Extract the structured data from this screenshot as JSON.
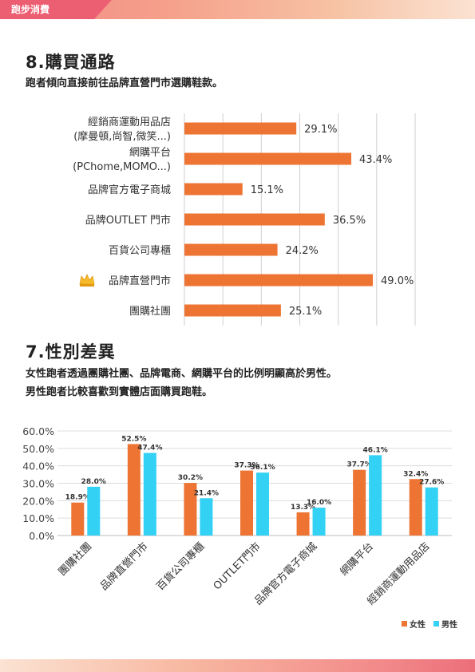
{
  "header": {
    "tag": "跑步消費"
  },
  "section8": {
    "title": "8.購買通路",
    "subtitle": "跑者傾向直接前往品牌直營門市選購鞋款。"
  },
  "section7": {
    "title": "7.性別差異",
    "subtitle_lines": [
      "女性跑者透過團購社團、品牌電商、網購平台的比例明顯高於男性。",
      "男性跑者比較喜歡到實體店面購買跑鞋。"
    ]
  },
  "colors": {
    "orange": "#ed7433",
    "blue": "#33d1f4",
    "grid": "#cfcfcf"
  },
  "chart_data": [
    {
      "type": "bar",
      "orientation": "horizontal",
      "categories": [
        [
          "經銷商運動用品店",
          "(摩曼頓,尚智,微笑...)"
        ],
        [
          "網購平台",
          "(PChome,MOMO...)"
        ],
        [
          "品牌官方電子商城"
        ],
        [
          "品牌OUTLET 門市"
        ],
        [
          "百貨公司專櫃"
        ],
        [
          "品牌直營門市"
        ],
        [
          "團購社團"
        ]
      ],
      "values": [
        29.1,
        43.4,
        15.1,
        36.5,
        24.2,
        49.0,
        25.1
      ],
      "value_labels": [
        "29.1%",
        "43.4%",
        "15.1%",
        "36.5%",
        "24.2%",
        "49.0%",
        "25.1%"
      ],
      "highlight_index": 5,
      "highlight_icon": "crown-icon",
      "xlim": [
        0,
        60
      ],
      "grid": true
    },
    {
      "type": "bar",
      "categories": [
        "團購社團",
        "品牌直營門市",
        "百貨公司專櫃",
        "OUTLET門市",
        "品牌官方電子商城",
        "網購平台",
        "經銷商運動用品店"
      ],
      "series": [
        {
          "name": "女性",
          "values": [
            18.9,
            52.5,
            30.2,
            37.3,
            13.3,
            37.7,
            32.4
          ],
          "labels": [
            "18.9%",
            "52.5%",
            "30.2%",
            "37.3%",
            "13.3%",
            "37.7%",
            "32.4%"
          ]
        },
        {
          "name": "男性",
          "values": [
            28.0,
            47.4,
            21.4,
            36.1,
            16.0,
            46.1,
            27.6
          ],
          "labels": [
            "28.0%",
            "47.4%",
            "21.4%",
            "36.1%",
            "16.0%",
            "46.1%",
            "27.6%"
          ]
        }
      ],
      "yticks": [
        "0.0%",
        "10.0%",
        "20.0%",
        "30.0%",
        "40.0%",
        "50.0%",
        "60.0%"
      ],
      "ylim": [
        0,
        60
      ],
      "legend": "bottom-right",
      "grid": true
    }
  ]
}
